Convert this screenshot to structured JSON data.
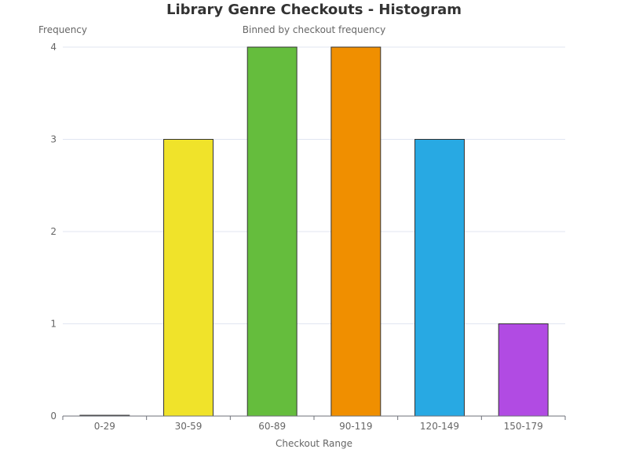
{
  "chart_data": {
    "type": "bar",
    "title": "Library Genre Checkouts - Histogram",
    "subtitle": "Binned by checkout frequency",
    "xlabel": "Checkout Range",
    "ylabel": "Frequency",
    "categories": [
      "0-29",
      "30-59",
      "60-89",
      "90-119",
      "120-149",
      "150-179"
    ],
    "values": [
      0,
      3,
      4,
      4,
      3,
      1
    ],
    "colors": [
      "#e0e0e0",
      "#f0e32a",
      "#65bd3d",
      "#f08f00",
      "#28a9e3",
      "#b14be3"
    ],
    "ylim": [
      0,
      4
    ],
    "yticks": [
      0,
      1,
      2,
      3,
      4
    ],
    "grid": true
  }
}
